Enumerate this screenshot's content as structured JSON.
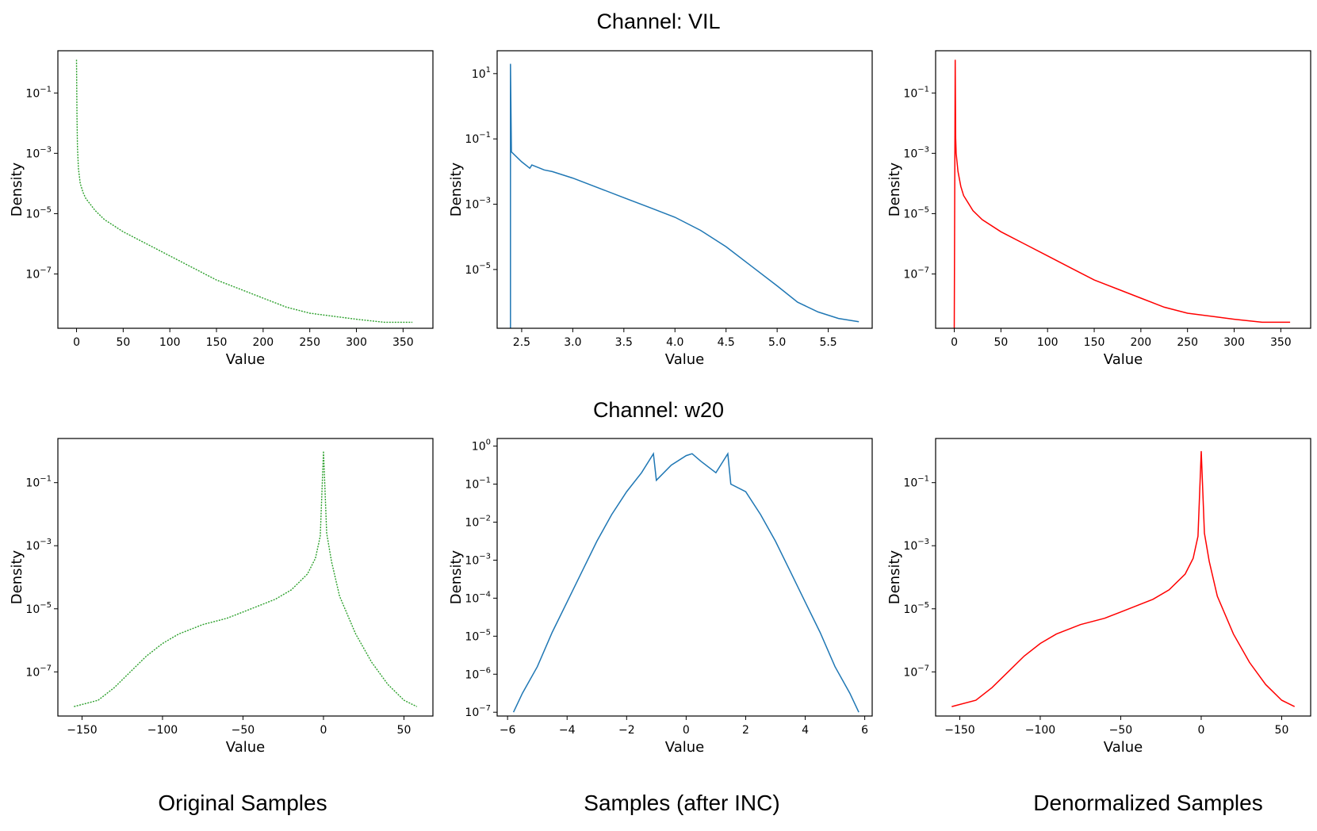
{
  "row_titles": [
    "Channel: VIL",
    "Channel: w20"
  ],
  "column_captions": [
    "Original Samples",
    "Samples (after INC)",
    "Denormalized Samples"
  ],
  "colors": {
    "original": "#2ca02c",
    "after_inc": "#1f77b4",
    "denormalized": "#ff0000"
  },
  "chart_data": [
    {
      "type": "line",
      "row": 0,
      "col": 0,
      "series_key": "original",
      "dash": true,
      "xlabel": "Value",
      "ylabel": "Density",
      "yscale": "log",
      "xlim": [
        -20,
        382
      ],
      "ylim_exp": [
        -8.8,
        0.4
      ],
      "xticks": [
        0,
        50,
        100,
        150,
        200,
        250,
        300,
        350
      ],
      "ytick_exps": [
        -7,
        -5,
        -3,
        -1
      ],
      "x": [
        0,
        0.5,
        1,
        2,
        4,
        7,
        10,
        20,
        30,
        50,
        75,
        100,
        125,
        150,
        175,
        200,
        225,
        250,
        275,
        300,
        330,
        360
      ],
      "y_exp": [
        0.1,
        -1.8,
        -2.8,
        -3.5,
        -4.0,
        -4.3,
        -4.5,
        -4.9,
        -5.2,
        -5.6,
        -6.0,
        -6.4,
        -6.8,
        -7.2,
        -7.5,
        -7.8,
        -8.1,
        -8.3,
        -8.4,
        -8.5,
        -8.6,
        -8.6
      ]
    },
    {
      "type": "line",
      "row": 0,
      "col": 1,
      "series_key": "after_inc",
      "dash": false,
      "xlabel": "Value",
      "ylabel": "Density",
      "yscale": "log",
      "xlim": [
        2.26,
        5.93
      ],
      "ylim_exp": [
        -6.8,
        1.7
      ],
      "xticks": [
        2.5,
        3.0,
        3.5,
        4.0,
        4.5,
        5.0,
        5.5
      ],
      "xtick_labels": [
        "2.5",
        "3.0",
        "3.5",
        "4.0",
        "4.5",
        "5.0",
        "5.5"
      ],
      "ytick_exps": [
        -5,
        -3,
        -1,
        1
      ],
      "x": [
        2.39,
        2.39,
        2.4,
        2.5,
        2.58,
        2.6,
        2.68,
        2.72,
        2.8,
        3.0,
        3.25,
        3.5,
        3.75,
        4.0,
        4.25,
        4.5,
        4.75,
        5.0,
        5.2,
        5.4,
        5.6,
        5.8
      ],
      "y_exp": [
        -6.8,
        1.3,
        -1.4,
        -1.7,
        -1.9,
        -1.8,
        -1.9,
        -1.95,
        -2.0,
        -2.2,
        -2.5,
        -2.8,
        -3.1,
        -3.4,
        -3.8,
        -4.3,
        -4.9,
        -5.5,
        -6.0,
        -6.3,
        -6.5,
        -6.6
      ]
    },
    {
      "type": "line",
      "row": 0,
      "col": 2,
      "series_key": "denormalized",
      "dash": false,
      "xlabel": "Value",
      "ylabel": "Density",
      "yscale": "log",
      "xlim": [
        -20,
        382
      ],
      "ylim_exp": [
        -8.8,
        0.4
      ],
      "xticks": [
        0,
        50,
        100,
        150,
        200,
        250,
        300,
        350
      ],
      "ytick_exps": [
        -7,
        -5,
        -3,
        -1
      ],
      "x": [
        0,
        1,
        1.5,
        2,
        4,
        7,
        10,
        20,
        30,
        50,
        75,
        100,
        125,
        150,
        175,
        200,
        225,
        250,
        275,
        300,
        330,
        360
      ],
      "y_exp": [
        -8.8,
        0.1,
        -2.5,
        -3.0,
        -3.6,
        -4.1,
        -4.4,
        -4.9,
        -5.2,
        -5.6,
        -6.0,
        -6.4,
        -6.8,
        -7.2,
        -7.5,
        -7.8,
        -8.1,
        -8.3,
        -8.4,
        -8.5,
        -8.6,
        -8.6
      ]
    },
    {
      "type": "line",
      "row": 1,
      "col": 0,
      "series_key": "original",
      "dash": true,
      "xlabel": "Value",
      "ylabel": "Density",
      "yscale": "log",
      "xlim": [
        -165,
        68
      ],
      "ylim_exp": [
        -8.4,
        0.4
      ],
      "xticks": [
        -150,
        -100,
        -50,
        0,
        50
      ],
      "xtick_labels": [
        "−150",
        "−100",
        "−50",
        "0",
        "50"
      ],
      "ytick_exps": [
        -7,
        -5,
        -3,
        -1
      ],
      "x": [
        -155,
        -140,
        -130,
        -120,
        -110,
        -100,
        -90,
        -75,
        -60,
        -50,
        -40,
        -30,
        -20,
        -10,
        -5,
        -2,
        0,
        2,
        5,
        10,
        20,
        30,
        40,
        50,
        58
      ],
      "y_exp": [
        -8.1,
        -7.9,
        -7.5,
        -7.0,
        -6.5,
        -6.1,
        -5.8,
        -5.5,
        -5.3,
        -5.1,
        -4.9,
        -4.7,
        -4.4,
        -3.9,
        -3.4,
        -2.7,
        0.0,
        -2.6,
        -3.5,
        -4.6,
        -5.8,
        -6.7,
        -7.4,
        -7.9,
        -8.1
      ]
    },
    {
      "type": "line",
      "row": 1,
      "col": 1,
      "series_key": "after_inc",
      "dash": false,
      "xlabel": "Value",
      "ylabel": "Density",
      "yscale": "log",
      "xlim": [
        -6.35,
        6.25
      ],
      "ylim_exp": [
        -7.1,
        0.2
      ],
      "xticks": [
        -6,
        -4,
        -2,
        0,
        2,
        4,
        6
      ],
      "xtick_labels": [
        "−6",
        "−4",
        "−2",
        "0",
        "2",
        "4",
        "6"
      ],
      "ytick_exps": [
        -7,
        -6,
        -5,
        -4,
        -3,
        -2,
        -1,
        0
      ],
      "x": [
        -5.8,
        -5.5,
        -5.0,
        -4.5,
        -4.0,
        -3.5,
        -3.0,
        -2.5,
        -2.0,
        -1.5,
        -1.1,
        -1.0,
        -0.5,
        0.0,
        0.2,
        0.5,
        1.0,
        1.4,
        1.5,
        2.0,
        2.5,
        3.0,
        3.5,
        4.0,
        4.5,
        5.0,
        5.5,
        5.8
      ],
      "y_exp": [
        -7.0,
        -6.5,
        -5.8,
        -4.9,
        -4.1,
        -3.3,
        -2.5,
        -1.8,
        -1.2,
        -0.7,
        -0.2,
        -0.9,
        -0.5,
        -0.25,
        -0.2,
        -0.4,
        -0.7,
        -0.2,
        -1.0,
        -1.2,
        -1.8,
        -2.5,
        -3.3,
        -4.1,
        -4.9,
        -5.8,
        -6.5,
        -7.0
      ]
    },
    {
      "type": "line",
      "row": 1,
      "col": 2,
      "series_key": "denormalized",
      "dash": false,
      "xlabel": "Value",
      "ylabel": "Density",
      "yscale": "log",
      "xlim": [
        -165,
        68
      ],
      "ylim_exp": [
        -8.4,
        0.4
      ],
      "xticks": [
        -150,
        -100,
        -50,
        0,
        50
      ],
      "xtick_labels": [
        "−150",
        "−100",
        "−50",
        "0",
        "50"
      ],
      "ytick_exps": [
        -7,
        -5,
        -3,
        -1
      ],
      "x": [
        -155,
        -140,
        -130,
        -120,
        -110,
        -100,
        -90,
        -75,
        -60,
        -50,
        -40,
        -30,
        -20,
        -10,
        -5,
        -2,
        0,
        2,
        5,
        10,
        20,
        30,
        40,
        50,
        58
      ],
      "y_exp": [
        -8.1,
        -7.9,
        -7.5,
        -7.0,
        -6.5,
        -6.1,
        -5.8,
        -5.5,
        -5.3,
        -5.1,
        -4.9,
        -4.7,
        -4.4,
        -3.9,
        -3.4,
        -2.7,
        0.0,
        -2.6,
        -3.5,
        -4.6,
        -5.8,
        -6.7,
        -7.4,
        -7.9,
        -8.1
      ]
    }
  ]
}
